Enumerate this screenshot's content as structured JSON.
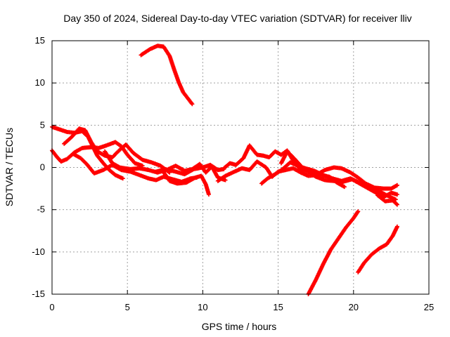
{
  "chart_data": {
    "type": "scatter",
    "title": "Day 350 of 2024, Sidereal Day-to-day VTEC variation (SDTVAR) for receiver lliv",
    "xlabel": "GPS time / hours",
    "ylabel": "SDTVAR / TECUs",
    "xlim": [
      0,
      25
    ],
    "ylim": [
      -15,
      15
    ],
    "xticks": [
      "0",
      "5",
      "10",
      "15",
      "20",
      "25"
    ],
    "yticks": [
      "15",
      "10",
      "5",
      "0",
      "-5",
      "-10",
      "-15"
    ],
    "grid": true,
    "marker": "+",
    "series_color": "#ff0000",
    "series": [
      {
        "name": "arc-1",
        "points": [
          [
            0.0,
            4.8
          ],
          [
            0.5,
            4.5
          ],
          [
            1.0,
            4.2
          ],
          [
            1.5,
            4.1
          ],
          [
            2.0,
            4.3
          ],
          [
            2.4,
            3.6
          ],
          [
            2.7,
            2.5
          ],
          [
            3.0,
            1.4
          ],
          [
            3.4,
            0.5
          ],
          [
            3.8,
            -0.3
          ],
          [
            4.2,
            -0.9
          ],
          [
            4.7,
            -1.3
          ]
        ]
      },
      {
        "name": "arc-2",
        "points": [
          [
            0.8,
            2.8
          ],
          [
            1.3,
            3.6
          ],
          [
            1.8,
            4.6
          ],
          [
            2.2,
            4.4
          ],
          [
            2.6,
            3.0
          ],
          [
            3.0,
            1.9
          ],
          [
            3.5,
            1.4
          ],
          [
            4.0,
            1.2
          ],
          [
            4.5,
            2.1
          ],
          [
            4.9,
            2.7
          ],
          [
            5.4,
            1.7
          ],
          [
            6.0,
            0.9
          ],
          [
            6.6,
            0.6
          ],
          [
            7.2,
            0.2
          ],
          [
            7.8,
            -0.6
          ]
        ]
      },
      {
        "name": "arc-3",
        "points": [
          [
            0.0,
            2.0
          ],
          [
            0.3,
            1.3
          ],
          [
            0.6,
            0.7
          ],
          [
            1.0,
            1.0
          ],
          [
            1.5,
            1.8
          ],
          [
            2.0,
            2.3
          ],
          [
            2.6,
            2.4
          ],
          [
            3.1,
            2.3
          ],
          [
            3.6,
            2.6
          ],
          [
            4.2,
            3.0
          ],
          [
            4.6,
            2.5
          ],
          [
            5.0,
            1.5
          ],
          [
            5.5,
            0.5
          ],
          [
            6.0,
            0.2
          ]
        ]
      },
      {
        "name": "arc-4",
        "points": [
          [
            1.4,
            1.6
          ],
          [
            1.9,
            1.1
          ],
          [
            2.3,
            0.4
          ],
          [
            2.8,
            -0.7
          ],
          [
            3.4,
            -0.3
          ],
          [
            4.0,
            0.3
          ],
          [
            4.6,
            -0.3
          ],
          [
            5.2,
            -0.5
          ],
          [
            5.8,
            -0.9
          ],
          [
            6.4,
            -1.3
          ],
          [
            6.9,
            -1.5
          ],
          [
            7.4,
            -1.1
          ],
          [
            8.0,
            -1.4
          ],
          [
            8.6,
            -1.7
          ],
          [
            9.2,
            -1.3
          ],
          [
            9.6,
            -1.2
          ]
        ]
      },
      {
        "name": "arc-5",
        "points": [
          [
            3.5,
            1.9
          ],
          [
            4.0,
            0.5
          ],
          [
            4.5,
            0.0
          ],
          [
            5.2,
            -0.2
          ],
          [
            5.8,
            -0.1
          ],
          [
            6.4,
            -0.3
          ],
          [
            7.0,
            -0.6
          ],
          [
            7.6,
            -0.3
          ],
          [
            8.2,
            0.2
          ],
          [
            8.8,
            -0.4
          ],
          [
            9.3,
            -0.2
          ],
          [
            9.8,
            0.4
          ],
          [
            10.2,
            -0.6
          ],
          [
            10.6,
            0.1
          ],
          [
            11.0,
            -1.2
          ],
          [
            11.5,
            -1.5
          ]
        ]
      },
      {
        "name": "arc-6",
        "points": [
          [
            6.9,
            -0.5
          ],
          [
            7.5,
            -0.2
          ],
          [
            8.2,
            -0.5
          ],
          [
            8.8,
            -0.8
          ],
          [
            9.4,
            -0.2
          ],
          [
            10.0,
            0.0
          ],
          [
            10.5,
            0.3
          ],
          [
            11.0,
            -0.3
          ],
          [
            11.4,
            -0.2
          ]
        ]
      },
      {
        "name": "arc-7",
        "points": [
          [
            7.3,
            -0.3
          ],
          [
            7.8,
            -1.6
          ],
          [
            8.3,
            -1.9
          ],
          [
            8.9,
            -1.8
          ],
          [
            9.5,
            -1.2
          ],
          [
            9.9,
            -1.0
          ],
          [
            10.2,
            -2.0
          ],
          [
            10.4,
            -3.2
          ]
        ]
      },
      {
        "name": "arc-8",
        "points": [
          [
            11.4,
            -0.1
          ],
          [
            11.8,
            0.5
          ],
          [
            12.2,
            0.3
          ],
          [
            12.7,
            1.1
          ],
          [
            13.1,
            2.6
          ],
          [
            13.6,
            1.5
          ],
          [
            14.0,
            1.4
          ],
          [
            14.4,
            1.2
          ],
          [
            14.8,
            1.9
          ],
          [
            15.2,
            1.5
          ],
          [
            15.6,
            2.0
          ],
          [
            16.0,
            0.8
          ],
          [
            16.5,
            -0.3
          ],
          [
            17.0,
            -0.5
          ],
          [
            17.5,
            -1.1
          ],
          [
            18.1,
            -1.5
          ],
          [
            18.7,
            -1.6
          ],
          [
            19.3,
            -1.7
          ],
          [
            19.9,
            -1.4
          ],
          [
            20.5,
            -2.0
          ],
          [
            21.0,
            -2.5
          ],
          [
            21.5,
            -3.0
          ],
          [
            22.0,
            -3.5
          ],
          [
            22.5,
            -3.0
          ],
          [
            22.9,
            -3.2
          ]
        ]
      },
      {
        "name": "arc-9",
        "points": [
          [
            11.0,
            -1.6
          ],
          [
            11.5,
            -1.0
          ],
          [
            12.1,
            -0.5
          ],
          [
            12.6,
            -0.1
          ],
          [
            13.1,
            -0.3
          ],
          [
            13.6,
            0.7
          ],
          [
            14.2,
            0.0
          ],
          [
            14.6,
            -1.1
          ],
          [
            15.0,
            -0.5
          ],
          [
            15.5,
            -0.3
          ],
          [
            16.0,
            -0.1
          ],
          [
            16.5,
            -0.6
          ],
          [
            17.0,
            -1.0
          ],
          [
            17.5,
            -0.9
          ],
          [
            18.1,
            -0.3
          ],
          [
            18.7,
            0.0
          ],
          [
            19.2,
            -0.1
          ],
          [
            19.8,
            -0.6
          ],
          [
            20.3,
            -1.2
          ],
          [
            20.8,
            -1.9
          ],
          [
            21.4,
            -2.4
          ],
          [
            22.0,
            -2.5
          ],
          [
            22.5,
            -2.5
          ],
          [
            22.9,
            -2.1
          ]
        ]
      },
      {
        "name": "arc-10",
        "points": [
          [
            13.9,
            -1.9
          ],
          [
            14.3,
            -1.3
          ],
          [
            14.8,
            -0.8
          ],
          [
            15.3,
            -0.2
          ],
          [
            15.8,
            0.6
          ],
          [
            16.3,
            0.2
          ],
          [
            16.8,
            -0.1
          ],
          [
            17.4,
            -0.4
          ],
          [
            18.0,
            -0.9
          ],
          [
            18.6,
            -1.3
          ],
          [
            19.2,
            -1.6
          ],
          [
            19.8,
            -1.3
          ],
          [
            20.4,
            -1.8
          ],
          [
            21.0,
            -2.1
          ],
          [
            21.6,
            -2.7
          ],
          [
            22.2,
            -3.3
          ],
          [
            22.8,
            -3.8
          ]
        ]
      },
      {
        "name": "arc-11",
        "points": [
          [
            15.2,
            0.5
          ],
          [
            15.6,
            1.9
          ],
          [
            16.1,
            1.0
          ],
          [
            16.6,
            0.0
          ],
          [
            17.2,
            -0.5
          ],
          [
            17.8,
            -0.9
          ],
          [
            18.4,
            -1.1
          ],
          [
            18.9,
            -1.8
          ],
          [
            19.4,
            -2.3
          ]
        ]
      },
      {
        "name": "arc-12",
        "points": [
          [
            21.6,
            -3.3
          ],
          [
            22.1,
            -4.0
          ],
          [
            22.6,
            -3.9
          ],
          [
            22.9,
            -4.4
          ]
        ]
      },
      {
        "name": "arc-13",
        "points": [
          [
            5.9,
            13.3
          ],
          [
            6.5,
            14.0
          ],
          [
            7.0,
            14.4
          ],
          [
            7.4,
            14.3
          ],
          [
            7.8,
            13.2
          ],
          [
            8.1,
            11.6
          ],
          [
            8.4,
            10.1
          ],
          [
            8.7,
            8.9
          ],
          [
            9.0,
            8.2
          ],
          [
            9.3,
            7.5
          ]
        ]
      },
      {
        "name": "arc-14",
        "points": [
          [
            17.0,
            -15.0
          ],
          [
            17.5,
            -13.3
          ],
          [
            18.0,
            -11.4
          ],
          [
            18.5,
            -9.7
          ],
          [
            19.0,
            -8.4
          ],
          [
            19.5,
            -7.1
          ],
          [
            20.0,
            -6.0
          ],
          [
            20.3,
            -5.2
          ]
        ]
      },
      {
        "name": "arc-15",
        "points": [
          [
            20.3,
            -12.4
          ],
          [
            20.7,
            -11.3
          ],
          [
            21.2,
            -10.3
          ],
          [
            21.7,
            -9.6
          ],
          [
            22.2,
            -9.1
          ],
          [
            22.6,
            -8.1
          ],
          [
            22.9,
            -7.0
          ]
        ]
      }
    ]
  }
}
